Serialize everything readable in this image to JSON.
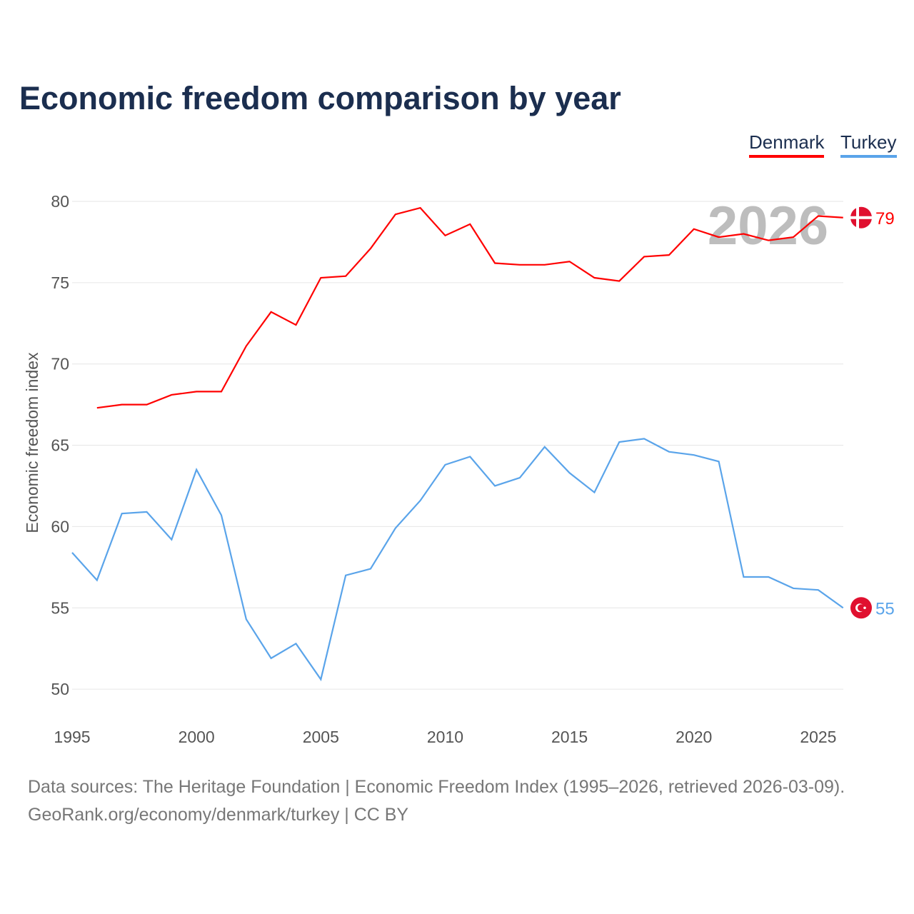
{
  "chart_data": {
    "type": "line",
    "title": "Economic freedom comparison by year",
    "xlabel": "",
    "ylabel": "Economic freedom index",
    "xlim": [
      1995,
      2026
    ],
    "ylim": [
      50,
      80
    ],
    "xticks": [
      1995,
      2000,
      2005,
      2010,
      2015,
      2020,
      2025
    ],
    "yticks": [
      50,
      55,
      60,
      65,
      70,
      75,
      80
    ],
    "grid": true,
    "legend_position": "top-right",
    "year_watermark": "2026",
    "series": [
      {
        "name": "Denmark",
        "color": "#ff0000",
        "end_label": "79",
        "x": [
          1996,
          1997,
          1998,
          1999,
          2000,
          2001,
          2002,
          2003,
          2004,
          2005,
          2006,
          2007,
          2008,
          2009,
          2010,
          2011,
          2012,
          2013,
          2014,
          2015,
          2016,
          2017,
          2018,
          2019,
          2020,
          2021,
          2022,
          2023,
          2024,
          2025,
          2026
        ],
        "values": [
          67.3,
          67.5,
          67.5,
          68.1,
          68.3,
          68.3,
          71.1,
          73.2,
          72.4,
          75.3,
          75.4,
          77.1,
          79.2,
          79.6,
          77.9,
          78.6,
          76.2,
          76.1,
          76.1,
          76.3,
          75.3,
          75.1,
          76.6,
          76.7,
          78.3,
          77.8,
          78.0,
          77.6,
          77.8,
          79.1,
          79.0
        ]
      },
      {
        "name": "Turkey",
        "color": "#5aa4ea",
        "end_label": "55",
        "x": [
          1995,
          1996,
          1997,
          1998,
          1999,
          2000,
          2001,
          2002,
          2003,
          2004,
          2005,
          2006,
          2007,
          2008,
          2009,
          2010,
          2011,
          2012,
          2013,
          2014,
          2015,
          2016,
          2017,
          2018,
          2019,
          2020,
          2021,
          2022,
          2023,
          2024,
          2025,
          2026
        ],
        "values": [
          58.4,
          56.7,
          60.8,
          60.9,
          59.2,
          63.5,
          60.7,
          54.3,
          51.9,
          52.8,
          50.6,
          57.0,
          57.4,
          59.9,
          61.6,
          63.8,
          64.3,
          62.5,
          63.0,
          64.9,
          63.3,
          62.1,
          65.2,
          65.4,
          64.6,
          64.4,
          64.0,
          56.9,
          56.9,
          56.2,
          56.1,
          55.0
        ]
      }
    ]
  },
  "footer": {
    "line1": "Data sources: The Heritage Foundation | Economic Freedom Index (1995–2026, retrieved 2026-03-09).",
    "line2": "GeoRank.org/economy/denmark/turkey | CC BY"
  }
}
